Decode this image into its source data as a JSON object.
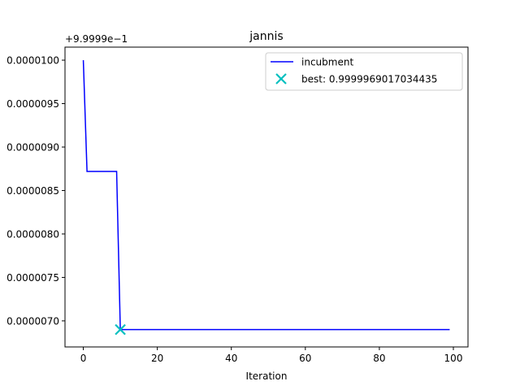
{
  "chart_data": {
    "type": "line",
    "title": "jannis",
    "xlabel": "Iteration",
    "ylabel": "",
    "offset_label": "+9.9999e−1",
    "xlim": [
      -4.95,
      103.95
    ],
    "ylim": [
      6.7e-06,
      1.015e-05
    ],
    "x_ticks": [
      0,
      20,
      40,
      60,
      80,
      100
    ],
    "x_tick_labels": [
      "0",
      "20",
      "40",
      "60",
      "80",
      "100"
    ],
    "y_ticks": [
      7e-06,
      7.5e-06,
      8e-06,
      8.5e-06,
      9e-06,
      9.5e-06,
      1e-05
    ],
    "y_tick_labels": [
      "0.0000070",
      "0.0000075",
      "0.0000080",
      "0.0000085",
      "0.0000090",
      "0.0000095",
      "0.0000100"
    ],
    "series": [
      {
        "name": "incubment",
        "color": "#0000ff",
        "points": [
          [
            0,
            1e-05
          ],
          [
            1,
            8.72e-06
          ],
          [
            9,
            8.72e-06
          ],
          [
            10,
            6.9e-06
          ],
          [
            99,
            6.9e-06
          ]
        ]
      }
    ],
    "best": {
      "name": "best: 0.9999969017034435",
      "color": "#00bfbf",
      "x": 10,
      "y": 6.9e-06
    },
    "legend_position": "upper-right",
    "grid": false
  }
}
